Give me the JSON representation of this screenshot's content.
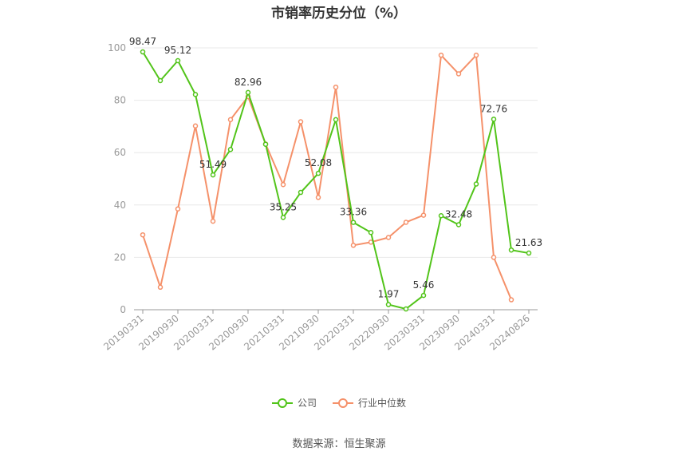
{
  "chart_data": {
    "type": "line",
    "title": "市销率历史分位（%）",
    "x": [
      "20190331",
      "20190630",
      "20190930",
      "20191231",
      "20200331",
      "20200630",
      "20200930",
      "20201231",
      "20210331",
      "20210630",
      "20210930",
      "20211231",
      "20220331",
      "20220630",
      "20220930",
      "20221231",
      "20230331",
      "20230630",
      "20230930",
      "20231231",
      "20240331",
      "20240630",
      "20240826"
    ],
    "x_tick_labels": [
      "20190331",
      "20190930",
      "20200331",
      "20200930",
      "20210331",
      "20210930",
      "20220331",
      "20220930",
      "20230331",
      "20230930",
      "20240331",
      "20240826"
    ],
    "ylim": [
      0,
      100
    ],
    "y_ticks": [
      0,
      20,
      40,
      60,
      80,
      100
    ],
    "grid": true,
    "legend_position": "bottom",
    "series": [
      {
        "name": "公司",
        "color": "#52c41a",
        "values": [
          98.47,
          87.5,
          95.12,
          82.2,
          51.49,
          61.2,
          82.96,
          63.2,
          35.25,
          44.8,
          52.08,
          72.6,
          33.36,
          29.5,
          1.97,
          0.3,
          5.46,
          35.9,
          32.48,
          48.0,
          72.76,
          22.8,
          21.63
        ],
        "labels": [
          "98.47",
          null,
          "95.12",
          null,
          "51.49",
          null,
          "82.96",
          null,
          "35.25",
          null,
          "52.08",
          null,
          "33.36",
          null,
          "1.97",
          null,
          "5.46",
          null,
          "32.48",
          null,
          "72.76",
          null,
          "21.63"
        ]
      },
      {
        "name": "行业中位数",
        "color": "#f5916a",
        "values": [
          28.6,
          8.6,
          38.5,
          70.2,
          33.8,
          72.6,
          81.4,
          63.3,
          47.8,
          71.8,
          42.9,
          85.0,
          24.6,
          25.8,
          27.6,
          33.4,
          36.1,
          97.2,
          90.1,
          97.2,
          20.0,
          3.8,
          null
        ],
        "labels": []
      }
    ]
  },
  "legend": {
    "company": "公司",
    "industry": "行业中位数"
  },
  "source": "数据来源：恒生聚源"
}
